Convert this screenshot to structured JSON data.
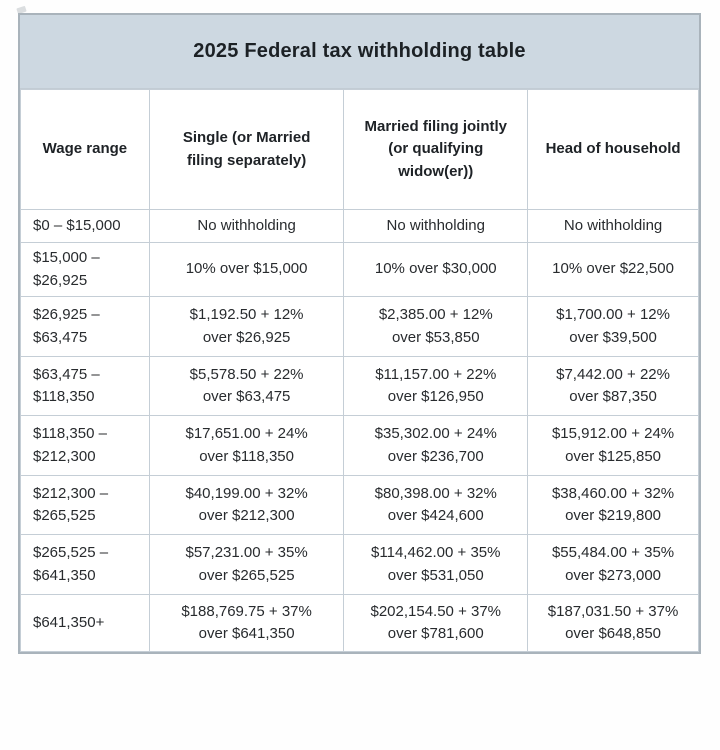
{
  "title": "2025 Federal tax withholding table",
  "colors": {
    "banner_bg": "#cdd8e1",
    "border_inner": "#c5ced6",
    "border_outer": "#a9b3bb",
    "text": "#282b2e"
  },
  "table": {
    "columns": [
      "Wage range",
      "Single (or Married\nfiling separately)",
      "Married filing jointly\n(or qualifying\nwidow(er))",
      "Head of household"
    ],
    "rows": [
      [
        "$0 – $15,000",
        "No withholding",
        "No withholding",
        "No withholding"
      ],
      [
        "$15,000 –\n$26,925",
        "10% over $15,000",
        "10% over $30,000",
        "10% over $22,500"
      ],
      [
        "$26,925 –\n$63,475",
        "$1,192.50 + 12%\nover $26,925",
        "$2,385.00 + 12%\nover $53,850",
        "$1,700.00 + 12%\nover $39,500"
      ],
      [
        "$63,475 –\n$118,350",
        "$5,578.50 + 22%\nover $63,475",
        "$11,157.00 + 22%\nover $126,950",
        "$7,442.00 + 22%\nover $87,350"
      ],
      [
        "$118,350 –\n$212,300",
        "$17,651.00 + 24%\nover $118,350",
        "$35,302.00 + 24%\nover $236,700",
        "$15,912.00 + 24%\nover $125,850"
      ],
      [
        "$212,300 –\n$265,525",
        "$40,199.00 + 32%\nover $212,300",
        "$80,398.00 + 32%\nover $424,600",
        "$38,460.00 + 32%\nover $219,800"
      ],
      [
        "$265,525 –\n$641,350",
        "$57,231.00 + 35%\nover $265,525",
        "$114,462.00 + 35%\nover $531,050",
        "$55,484.00 + 35%\nover $273,000"
      ],
      [
        "$641,350+",
        "$188,769.75 + 37%\nover $641,350",
        "$202,154.50 + 37%\nover $781,600",
        "$187,031.50 + 37%\nover $648,850"
      ]
    ]
  }
}
